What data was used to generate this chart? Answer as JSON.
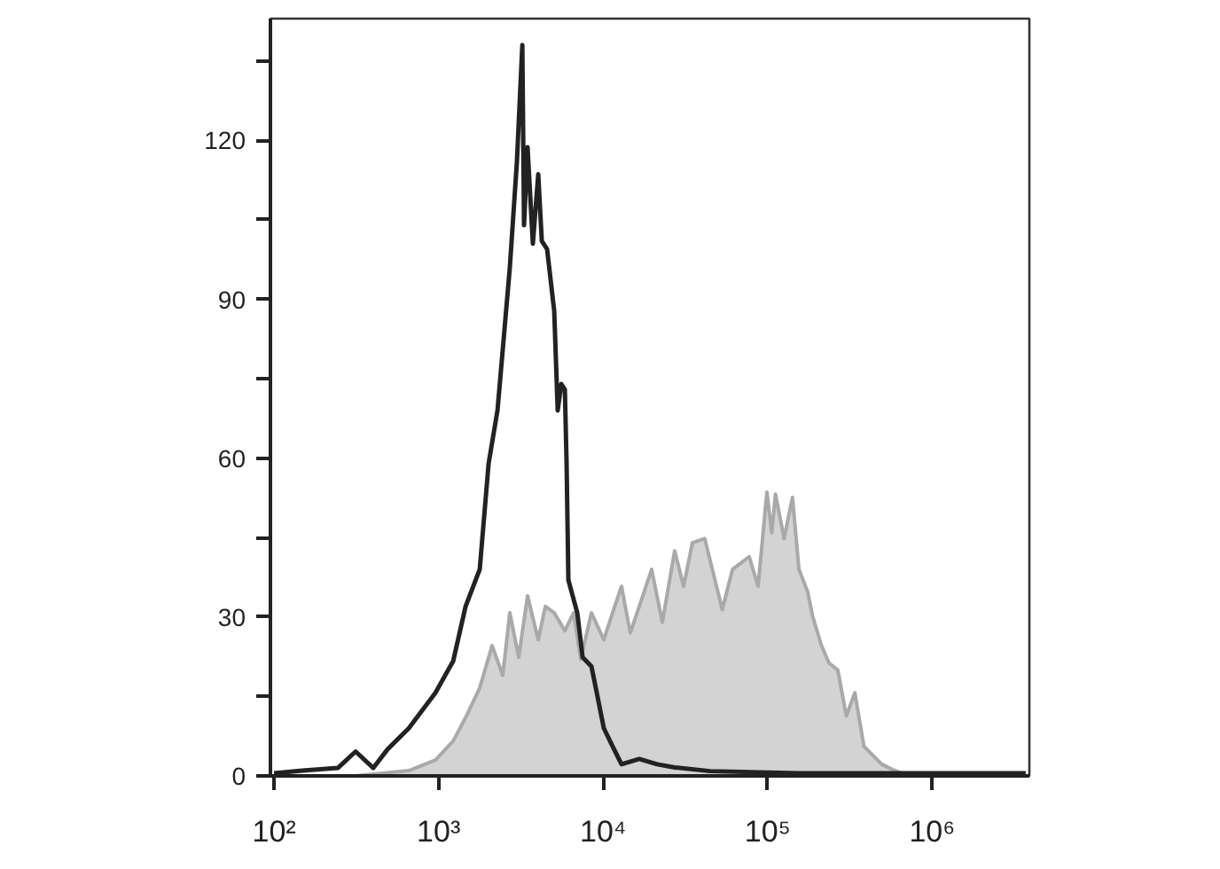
{
  "chart_data": {
    "type": "line",
    "log": "x",
    "grid": false,
    "xlim": [
      95,
      3900000
    ],
    "ylim": [
      0,
      143
    ],
    "xticks": [
      {
        "value": 100,
        "label": "10²"
      },
      {
        "value": 1000,
        "label": "10³"
      },
      {
        "value": 10000,
        "label": "10⁴"
      },
      {
        "value": 100000,
        "label": "10⁵"
      },
      {
        "value": 1000000,
        "label": "10⁶"
      }
    ],
    "yticks": [
      0,
      {
        "value": 15,
        "label": null
      },
      30,
      {
        "value": 45,
        "label": null
      },
      60,
      {
        "value": 75,
        "label": null
      },
      90,
      {
        "value": 105,
        "label": null
      },
      120,
      {
        "value": 135,
        "label": null
      }
    ],
    "series": [
      {
        "type": "area",
        "color": "#d3d3d3",
        "x": [
          313,
          659,
          957,
          1227,
          1459,
          1778,
          2115,
          2455,
          2710,
          3069,
          3473,
          4034,
          4457,
          5044,
          5853,
          6620,
          7311,
          8492,
          10100,
          11420,
          12940,
          14620,
          16590,
          19720,
          22910,
          27230,
          30860,
          34900,
          41500,
          53000,
          61200,
          77270,
          87500,
          99000,
          106000,
          111600,
          126000,
          141600,
          155000,
          175000,
          188000,
          212000,
          236000,
          267000,
          301000,
          339000,
          385000,
          494000,
          575000,
          680000,
          3706000
        ],
        "values": [
          0,
          1,
          3,
          6.6,
          11,
          16.6,
          24.6,
          19,
          30.8,
          22.4,
          34,
          25.7,
          32,
          30.8,
          27.4,
          30.8,
          22,
          30.8,
          25.7,
          30.8,
          35.8,
          27,
          32,
          39,
          29,
          42.5,
          35.8,
          44,
          44.8,
          31.4,
          39,
          41.4,
          35.8,
          53.6,
          45.9,
          53.2,
          44.8,
          52.6,
          39,
          34.8,
          30.1,
          24.7,
          21.3,
          20,
          11.3,
          15.7,
          5.6,
          2.2,
          1.2,
          0.3,
          0
        ]
      },
      {
        "color": "#222222",
        "x": [
          100,
          149,
          244,
          313,
          401,
          489,
          659,
          957,
          1227,
          1459,
          1778,
          2014,
          2280,
          2710,
          2993,
          3228,
          3306,
          3473,
          3741,
          4034,
          4240,
          4564,
          5044,
          5296,
          5568,
          5853,
          5998,
          6150,
          6966,
          7505,
          8492,
          9150,
          10100,
          11420,
          12940,
          16590,
          21280,
          27230,
          44770,
          154900,
          534600,
          1442000,
          3706000
        ],
        "values": [
          0.5,
          1,
          1.5,
          4.6,
          1.5,
          5,
          9,
          15.7,
          21.7,
          32,
          39,
          59,
          69,
          96,
          116,
          138,
          104,
          118.7,
          100.5,
          113.6,
          101,
          99.5,
          87.8,
          69,
          74,
          73,
          59,
          37,
          30.8,
          22.4,
          20.7,
          15.7,
          9,
          5.6,
          2.2,
          3.2,
          2.2,
          1.6,
          0.9,
          0.5,
          0.5,
          0.5,
          0.5
        ]
      }
    ]
  }
}
